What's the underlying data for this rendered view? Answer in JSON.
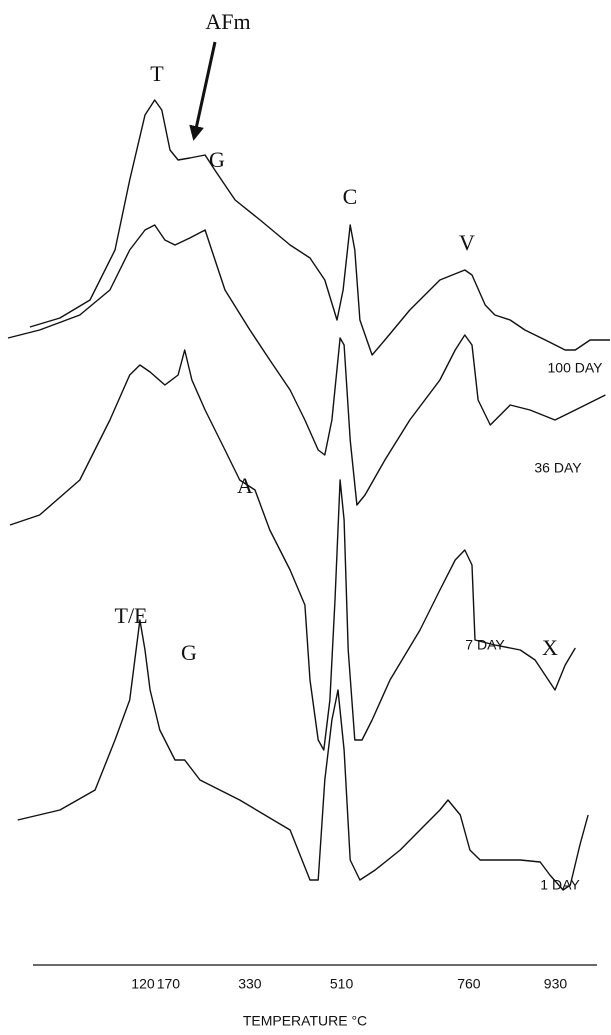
{
  "chart_data": {
    "type": "line",
    "xlabel": "TEMPERATURE °C",
    "xlim": [
      -145,
      1039
    ],
    "ylim": [
      0,
      930
    ],
    "xticks": [
      120,
      170,
      330,
      510,
      760,
      930
    ],
    "color": "#111111",
    "annotations": [
      "T",
      "AFm",
      "G",
      "C",
      "V",
      "A",
      "X",
      "T/E",
      "G"
    ],
    "series": [
      {
        "name": "100 DAY",
        "x": [
          -102,
          -43,
          16,
          65,
          94,
          124,
          143,
          157,
          173,
          189,
          212,
          242,
          261,
          301,
          350,
          409,
          448,
          477,
          501,
          513,
          527,
          536,
          546,
          570,
          595,
          644,
          703,
          752,
          766,
          792,
          811,
          841,
          870,
          910,
          949,
          969,
          998,
          1037
        ],
        "values": [
          603,
          612,
          630,
          680,
          750,
          815,
          830,
          820,
          780,
          770,
          772,
          775,
          760,
          730,
          710,
          685,
          672,
          650,
          610,
          640,
          705,
          680,
          610,
          575,
          590,
          620,
          650,
          660,
          655,
          625,
          615,
          610,
          600,
          590,
          580,
          580,
          590,
          590
        ]
      },
      {
        "name": "36 DAY",
        "x": [
          -145,
          -83,
          -4,
          55,
          94,
          124,
          143,
          163,
          183,
          212,
          242,
          255,
          281,
          330,
          369,
          409,
          438,
          464,
          477,
          491,
          507,
          515,
          527,
          540,
          556,
          595,
          644,
          703,
          733,
          752,
          766,
          778,
          802,
          841,
          880,
          929,
          969,
          1028
        ],
        "values": [
          592,
          600,
          615,
          640,
          680,
          700,
          705,
          690,
          685,
          692,
          700,
          680,
          640,
          600,
          570,
          540,
          510,
          480,
          475,
          510,
          592,
          585,
          490,
          425,
          435,
          470,
          510,
          550,
          580,
          595,
          585,
          530,
          505,
          525,
          520,
          510,
          520,
          535
        ]
      },
      {
        "name": "7 DAY",
        "x": [
          -141,
          -83,
          -4,
          55,
          94,
          114,
          134,
          163,
          189,
          202,
          216,
          242,
          281,
          310,
          340,
          369,
          409,
          438,
          448,
          464,
          475,
          487,
          497,
          507,
          515,
          523,
          536,
          550,
          570,
          605,
          664,
          703,
          733,
          752,
          766,
          772,
          811,
          861,
          890,
          929,
          949,
          969
        ],
        "values": [
          405,
          415,
          450,
          510,
          555,
          565,
          558,
          545,
          555,
          580,
          550,
          520,
          480,
          450,
          440,
          400,
          360,
          325,
          250,
          190,
          180,
          230,
          330,
          450,
          410,
          280,
          190,
          190,
          210,
          250,
          300,
          340,
          370,
          380,
          365,
          290,
          285,
          280,
          270,
          240,
          265,
          282
        ]
      },
      {
        "name": "1 DAY",
        "x": [
          -126,
          -43,
          26,
          65,
          94,
          104,
          114,
          124,
          134,
          153,
          183,
          202,
          232,
          310,
          409,
          448,
          464,
          477,
          491,
          503,
          515,
          527,
          546,
          576,
          625,
          664,
          703,
          719,
          743,
          762,
          782,
          861,
          900,
          919,
          945,
          959,
          978,
          994
        ],
        "values": [
          110,
          120,
          140,
          190,
          230,
          270,
          310,
          280,
          240,
          200,
          170,
          170,
          150,
          130,
          100,
          50,
          50,
          150,
          210,
          240,
          180,
          70,
          50,
          60,
          80,
          100,
          120,
          130,
          115,
          80,
          70,
          70,
          68,
          55,
          40,
          45,
          85,
          115
        ]
      }
    ]
  }
}
